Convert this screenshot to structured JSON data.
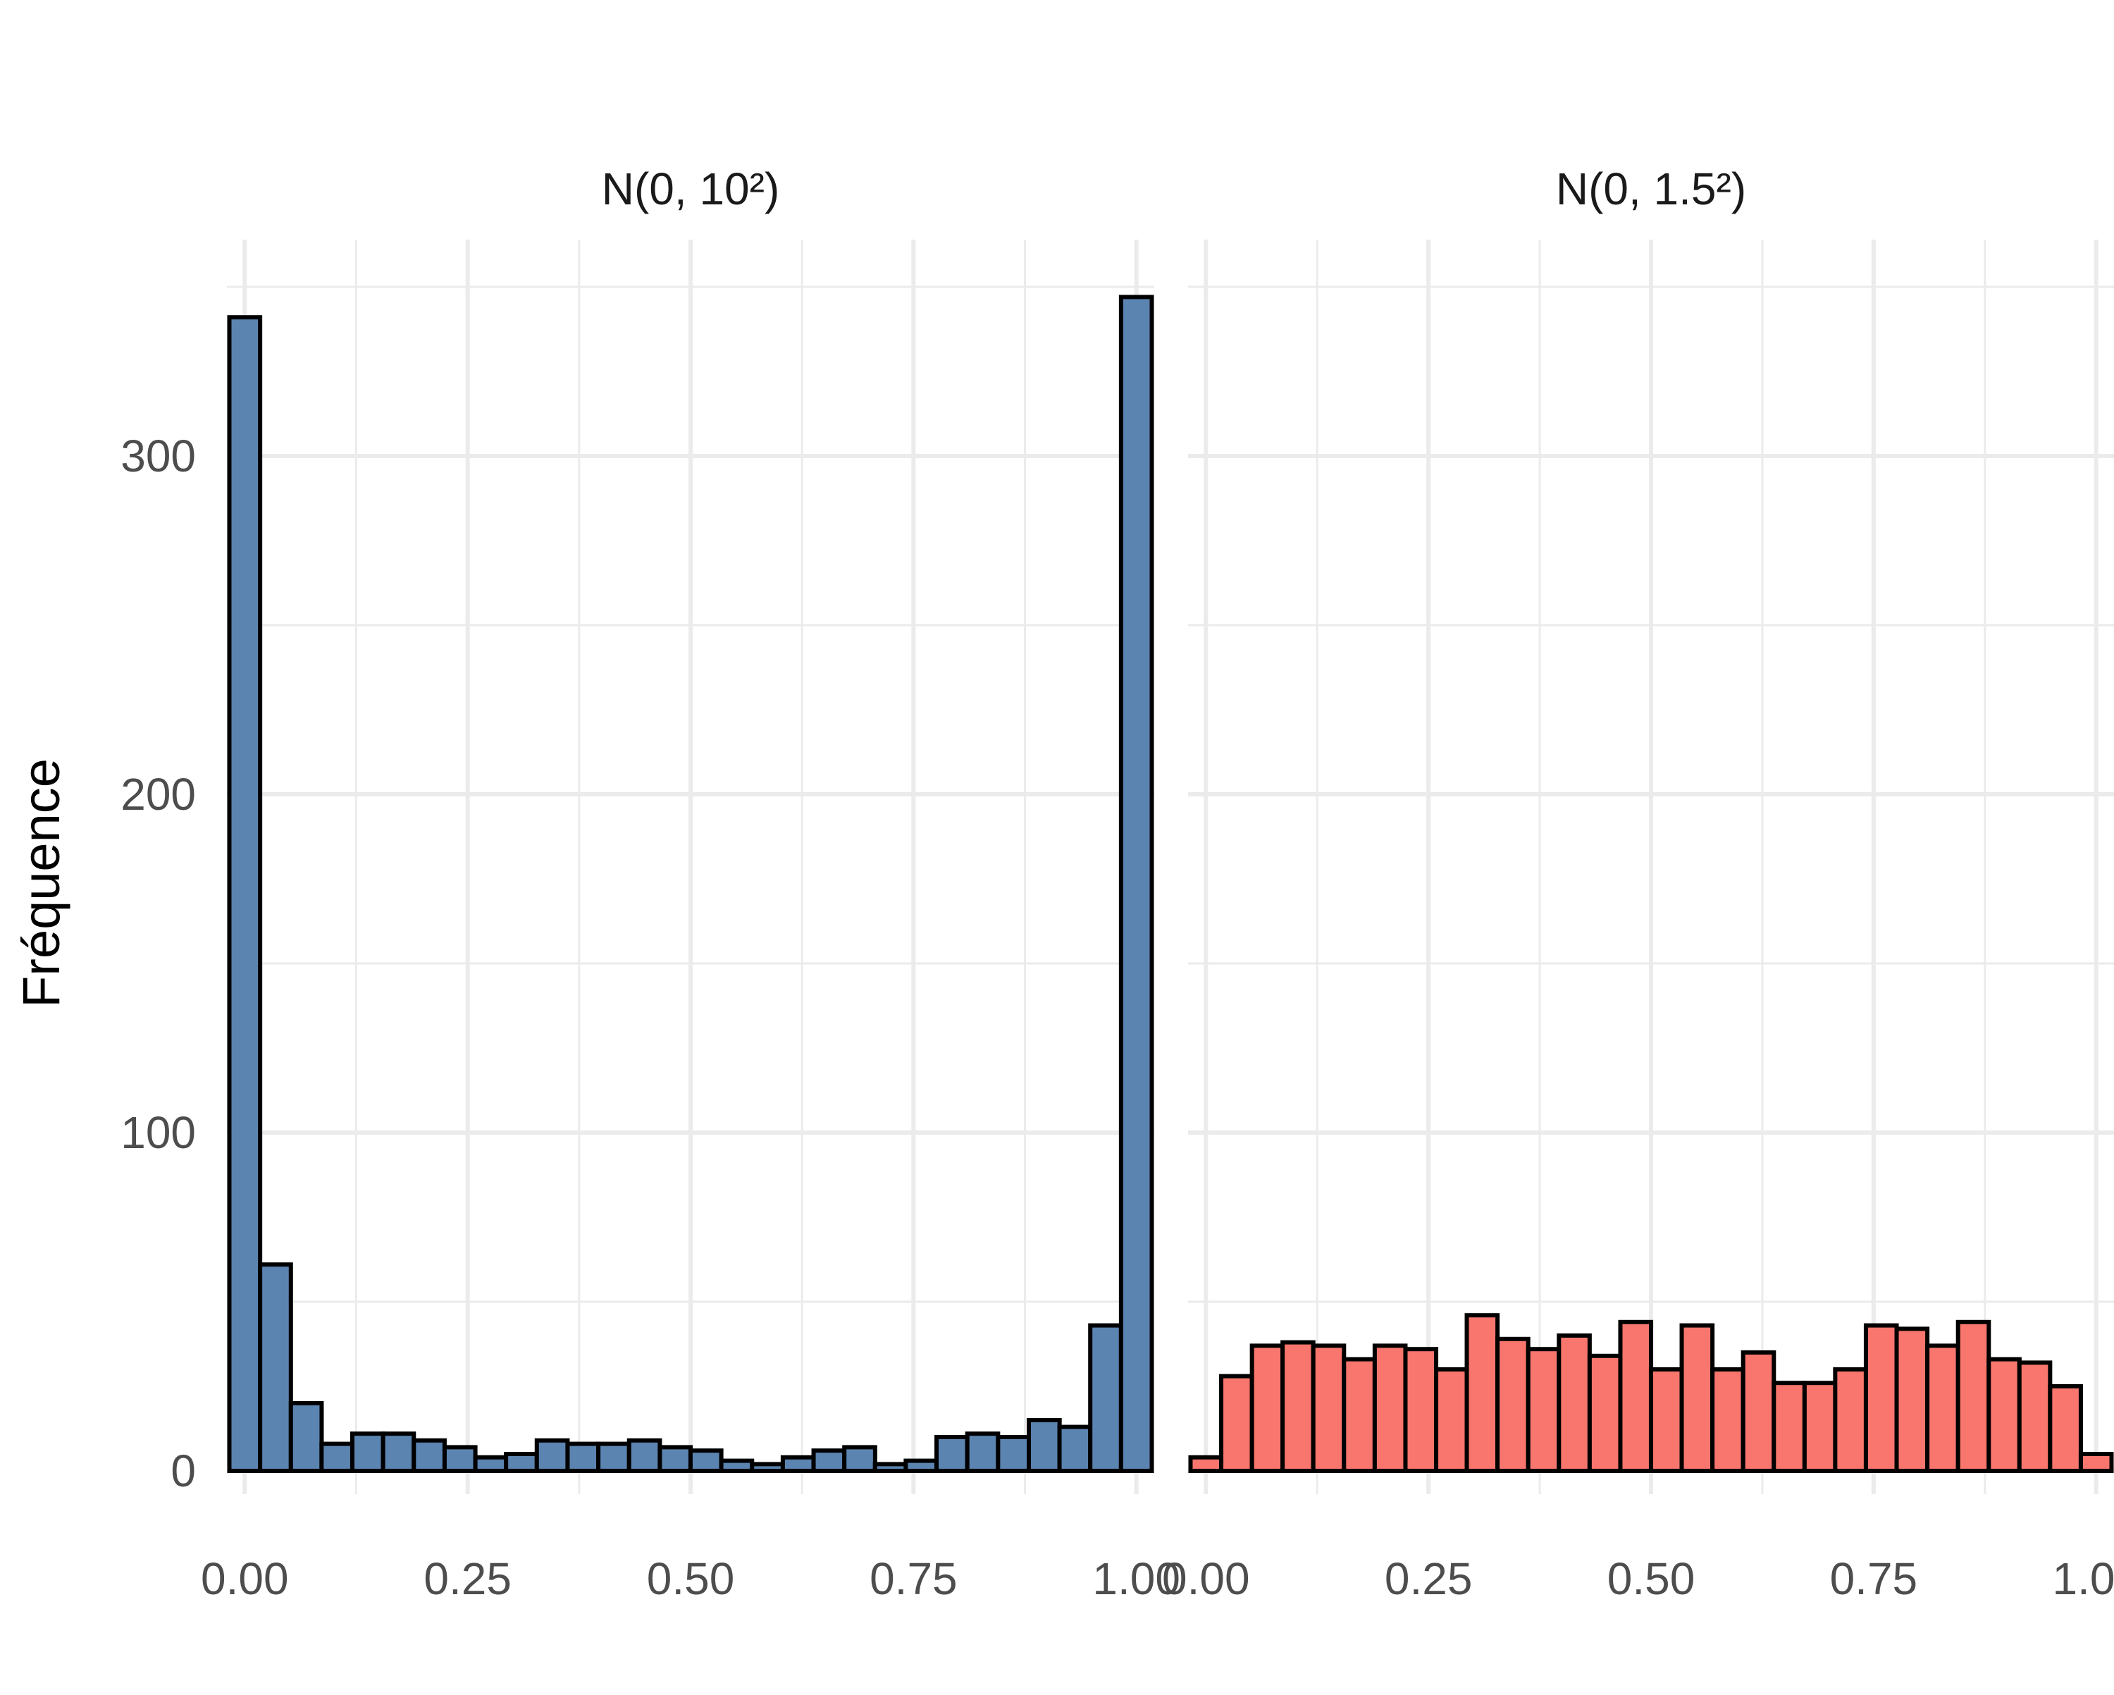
{
  "chart_data": {
    "type": "bar",
    "ylabel": "Fréquence",
    "xlabel": "",
    "ylim": [
      0,
      350
    ],
    "y_ticks": [
      0,
      100,
      200,
      300
    ],
    "y_tick_labels": [
      "0",
      "100",
      "200",
      "300"
    ],
    "x_ticks": [
      0,
      0.25,
      0.5,
      0.75,
      1
    ],
    "x_tick_labels": [
      "0.00",
      "0.25",
      "0.50",
      "0.75",
      "1.00"
    ],
    "grid": true,
    "bin_width": 0.0345,
    "facets": [
      {
        "title": "N(0, 10²)",
        "color": "#5B84B1",
        "xlim": [
          -0.02,
          1.02
        ],
        "bin_centers": [
          0.0,
          0.0345,
          0.069,
          0.1034,
          0.1379,
          0.1724,
          0.2069,
          0.2414,
          0.2759,
          0.3103,
          0.3448,
          0.3793,
          0.4138,
          0.4483,
          0.4828,
          0.5172,
          0.5517,
          0.5862,
          0.6207,
          0.6552,
          0.6897,
          0.7241,
          0.7586,
          0.7931,
          0.8276,
          0.8621,
          0.8966,
          0.931,
          0.9655,
          1.0
        ],
        "values": [
          341,
          61,
          20,
          8,
          11,
          11,
          9,
          7,
          4,
          5,
          9,
          8,
          8,
          9,
          7,
          6,
          3,
          2,
          4,
          6,
          7,
          2,
          3,
          10,
          11,
          10,
          15,
          13,
          43,
          347
        ]
      },
      {
        "title": "N(0, 1.5²)",
        "color": "#F8766D",
        "xlim": [
          -0.02,
          1.02
        ],
        "bin_centers": [
          0.0,
          0.0345,
          0.069,
          0.1034,
          0.1379,
          0.1724,
          0.2069,
          0.2414,
          0.2759,
          0.3103,
          0.3448,
          0.3793,
          0.4138,
          0.4483,
          0.4828,
          0.5172,
          0.5517,
          0.5862,
          0.6207,
          0.6552,
          0.6897,
          0.7241,
          0.7586,
          0.7931,
          0.8276,
          0.8621,
          0.8966,
          0.931,
          0.9655,
          1.0
        ],
        "values": [
          4,
          28,
          37,
          38,
          37,
          33,
          37,
          36,
          30,
          46,
          39,
          36,
          40,
          34,
          44,
          30,
          43,
          30,
          35,
          26,
          26,
          30,
          43,
          42,
          37,
          44,
          33,
          32,
          25,
          5
        ]
      }
    ]
  }
}
